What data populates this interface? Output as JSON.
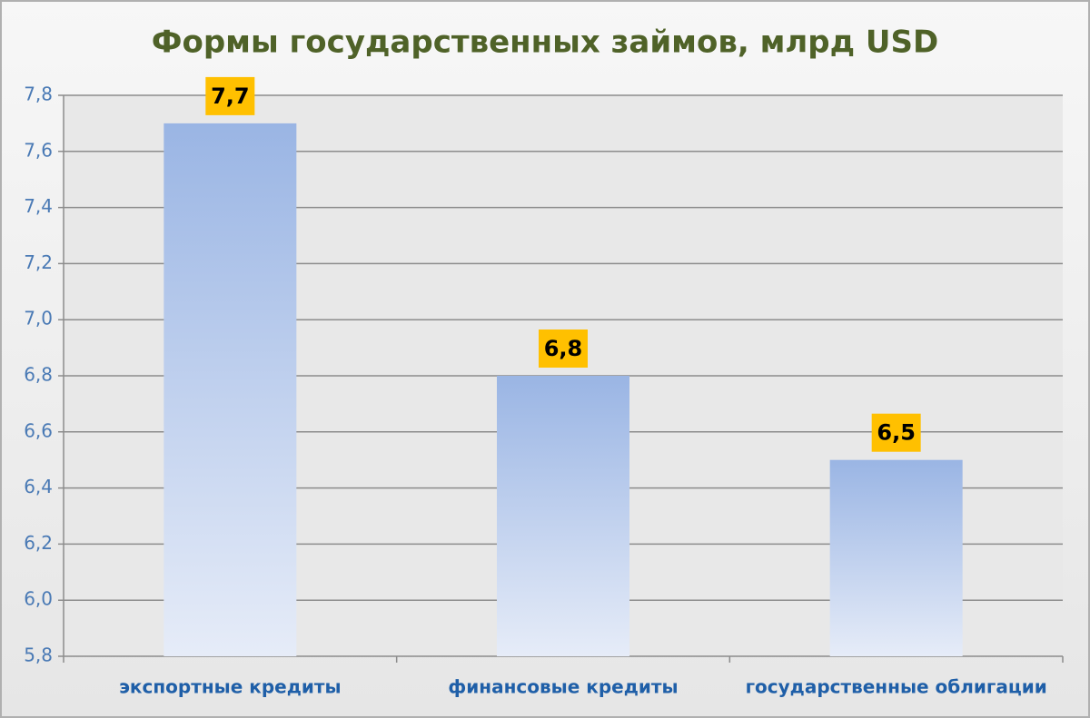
{
  "chart_data": {
    "type": "bar",
    "title": "Формы государственных займов, млрд USD",
    "categories": [
      "экспортные кредиты",
      "финансовые кредиты",
      "государственные облигации"
    ],
    "values": [
      7.7,
      6.8,
      6.5
    ],
    "value_labels": [
      "7,7",
      "6,8",
      "6,5"
    ],
    "color": "#9ab5e4",
    "ylim": [
      5.8,
      7.8
    ],
    "yticks": [
      {
        "value": 5.8,
        "label": "5,8"
      },
      {
        "value": 6.0,
        "label": "6,0"
      },
      {
        "value": 6.2,
        "label": "6,2"
      },
      {
        "value": 6.4,
        "label": "6,4"
      },
      {
        "value": 6.6,
        "label": "6,6"
      },
      {
        "value": 6.8,
        "label": "6,8"
      },
      {
        "value": 7.0,
        "label": "7,0"
      },
      {
        "value": 7.2,
        "label": "7,2"
      },
      {
        "value": 7.4,
        "label": "7,4"
      },
      {
        "value": 7.6,
        "label": "7,6"
      },
      {
        "value": 7.8,
        "label": "7,8"
      }
    ],
    "grid": true
  }
}
